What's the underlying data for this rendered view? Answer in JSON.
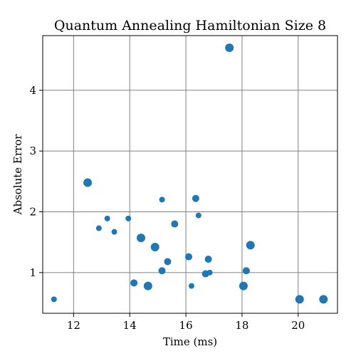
{
  "chart_data": {
    "type": "scatter",
    "title": "Quantum Annealing Hamiltonian Size 8",
    "xlabel": "Time (ms)",
    "ylabel": "Absolute Error",
    "xlim": [
      10.9,
      21.4
    ],
    "ylim": [
      0.33,
      4.9
    ],
    "xticks": [
      12,
      14,
      16,
      18,
      20
    ],
    "yticks": [
      1,
      2,
      3,
      4
    ],
    "grid": true,
    "color": "#1f77b4",
    "points": [
      {
        "x": 11.3,
        "y": 0.56,
        "size": "small"
      },
      {
        "x": 12.5,
        "y": 2.48,
        "size": "large"
      },
      {
        "x": 12.9,
        "y": 1.73,
        "size": "small"
      },
      {
        "x": 13.2,
        "y": 1.89,
        "size": "small"
      },
      {
        "x": 13.45,
        "y": 1.67,
        "size": "small"
      },
      {
        "x": 13.95,
        "y": 1.89,
        "size": "small"
      },
      {
        "x": 14.15,
        "y": 0.83,
        "size": "medium"
      },
      {
        "x": 14.4,
        "y": 1.57,
        "size": "large"
      },
      {
        "x": 14.65,
        "y": 0.78,
        "size": "large"
      },
      {
        "x": 14.9,
        "y": 1.42,
        "size": "large"
      },
      {
        "x": 15.15,
        "y": 2.2,
        "size": "small"
      },
      {
        "x": 15.15,
        "y": 1.03,
        "size": "medium"
      },
      {
        "x": 15.35,
        "y": 1.18,
        "size": "medium"
      },
      {
        "x": 15.6,
        "y": 1.8,
        "size": "medium"
      },
      {
        "x": 16.1,
        "y": 1.26,
        "size": "medium"
      },
      {
        "x": 16.2,
        "y": 0.78,
        "size": "small"
      },
      {
        "x": 16.35,
        "y": 2.22,
        "size": "medium"
      },
      {
        "x": 16.45,
        "y": 1.94,
        "size": "small"
      },
      {
        "x": 16.7,
        "y": 0.98,
        "size": "medium"
      },
      {
        "x": 16.8,
        "y": 1.22,
        "size": "medium"
      },
      {
        "x": 16.85,
        "y": 1.0,
        "size": "small"
      },
      {
        "x": 17.55,
        "y": 4.7,
        "size": "large"
      },
      {
        "x": 18.05,
        "y": 0.78,
        "size": "large"
      },
      {
        "x": 18.15,
        "y": 1.03,
        "size": "medium"
      },
      {
        "x": 18.3,
        "y": 1.45,
        "size": "large"
      },
      {
        "x": 20.05,
        "y": 0.56,
        "size": "large"
      },
      {
        "x": 20.9,
        "y": 0.56,
        "size": "large"
      }
    ]
  }
}
